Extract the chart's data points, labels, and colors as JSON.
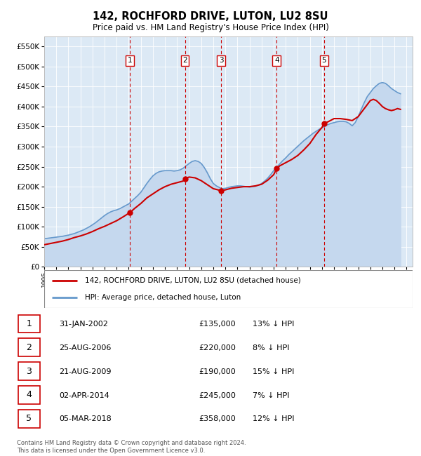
{
  "title": "142, ROCHFORD DRIVE, LUTON, LU2 8SU",
  "subtitle": "Price paid vs. HM Land Registry's House Price Index (HPI)",
  "ylim": [
    0,
    575000
  ],
  "yticks": [
    0,
    50000,
    100000,
    150000,
    200000,
    250000,
    300000,
    350000,
    400000,
    450000,
    500000,
    550000
  ],
  "fig_bg_color": "#ffffff",
  "plot_bg_color": "#dce9f5",
  "hpi_color": "#6699cc",
  "hpi_fill_color": "#c5d8ee",
  "price_color": "#cc0000",
  "vline_color": "#cc0000",
  "transactions": [
    {
      "num": 1,
      "date": "31-JAN-2002",
      "price": 135000,
      "pct": "13%",
      "x": 2002.08
    },
    {
      "num": 2,
      "date": "25-AUG-2006",
      "price": 220000,
      "pct": "8%",
      "x": 2006.65
    },
    {
      "num": 3,
      "date": "21-AUG-2009",
      "price": 190000,
      "pct": "15%",
      "x": 2009.65
    },
    {
      "num": 4,
      "date": "02-APR-2014",
      "price": 245000,
      "pct": "7%",
      "x": 2014.25
    },
    {
      "num": 5,
      "date": "05-MAR-2018",
      "price": 358000,
      "pct": "12%",
      "x": 2018.17
    }
  ],
  "hpi_line": {
    "x": [
      1995.0,
      1995.25,
      1995.5,
      1995.75,
      1996.0,
      1996.25,
      1996.5,
      1996.75,
      1997.0,
      1997.25,
      1997.5,
      1997.75,
      1998.0,
      1998.25,
      1998.5,
      1998.75,
      1999.0,
      1999.25,
      1999.5,
      1999.75,
      2000.0,
      2000.25,
      2000.5,
      2000.75,
      2001.0,
      2001.25,
      2001.5,
      2001.75,
      2002.0,
      2002.25,
      2002.5,
      2002.75,
      2003.0,
      2003.25,
      2003.5,
      2003.75,
      2004.0,
      2004.25,
      2004.5,
      2004.75,
      2005.0,
      2005.25,
      2005.5,
      2005.75,
      2006.0,
      2006.25,
      2006.5,
      2006.75,
      2007.0,
      2007.25,
      2007.5,
      2007.75,
      2008.0,
      2008.25,
      2008.5,
      2008.75,
      2009.0,
      2009.25,
      2009.5,
      2009.75,
      2010.0,
      2010.25,
      2010.5,
      2010.75,
      2011.0,
      2011.25,
      2011.5,
      2011.75,
      2012.0,
      2012.25,
      2012.5,
      2012.75,
      2013.0,
      2013.25,
      2013.5,
      2013.75,
      2014.0,
      2014.25,
      2014.5,
      2014.75,
      2015.0,
      2015.25,
      2015.5,
      2015.75,
      2016.0,
      2016.25,
      2016.5,
      2016.75,
      2017.0,
      2017.25,
      2017.5,
      2017.75,
      2018.0,
      2018.25,
      2018.5,
      2018.75,
      2019.0,
      2019.25,
      2019.5,
      2019.75,
      2020.0,
      2020.25,
      2020.5,
      2020.75,
      2021.0,
      2021.25,
      2021.5,
      2021.75,
      2022.0,
      2022.25,
      2022.5,
      2022.75,
      2023.0,
      2023.25,
      2023.5,
      2023.75,
      2024.0,
      2024.25,
      2024.5
    ],
    "y": [
      70000,
      71000,
      72000,
      73000,
      74000,
      75000,
      76000,
      77500,
      79000,
      81000,
      83000,
      86000,
      89000,
      92000,
      96000,
      100000,
      105000,
      110000,
      116000,
      122000,
      128000,
      133000,
      137000,
      140000,
      142000,
      145000,
      149000,
      153000,
      157000,
      164000,
      171000,
      178000,
      186000,
      197000,
      208000,
      218000,
      227000,
      233000,
      237000,
      239000,
      240000,
      240000,
      240000,
      239000,
      240000,
      242000,
      246000,
      252000,
      258000,
      263000,
      265000,
      263000,
      258000,
      248000,
      235000,
      220000,
      208000,
      202000,
      198000,
      195000,
      196000,
      198000,
      200000,
      201000,
      202000,
      202000,
      201000,
      200000,
      199000,
      200000,
      201000,
      204000,
      208000,
      214000,
      221000,
      230000,
      240000,
      248000,
      257000,
      265000,
      272000,
      280000,
      287000,
      294000,
      301000,
      308000,
      315000,
      321000,
      327000,
      333000,
      338000,
      343000,
      347000,
      351000,
      355000,
      358000,
      360000,
      362000,
      363000,
      363000,
      362000,
      358000,
      352000,
      360000,
      375000,
      393000,
      410000,
      425000,
      435000,
      445000,
      452000,
      458000,
      460000,
      458000,
      452000,
      445000,
      440000,
      435000,
      432000
    ]
  },
  "price_line": {
    "x": [
      1995.0,
      1995.5,
      1996.0,
      1996.5,
      1997.0,
      1997.5,
      1998.0,
      1998.5,
      1999.0,
      1999.5,
      2000.0,
      2000.5,
      2001.0,
      2001.5,
      2002.08,
      2002.5,
      2003.0,
      2003.5,
      2004.0,
      2004.5,
      2005.0,
      2005.5,
      2006.0,
      2006.5,
      2006.65,
      2007.0,
      2007.5,
      2008.0,
      2008.5,
      2009.0,
      2009.65,
      2010.0,
      2010.5,
      2011.0,
      2011.5,
      2012.0,
      2012.5,
      2013.0,
      2013.5,
      2014.0,
      2014.25,
      2014.5,
      2015.0,
      2015.5,
      2016.0,
      2016.5,
      2017.0,
      2017.5,
      2018.0,
      2018.17,
      2018.5,
      2019.0,
      2019.5,
      2020.0,
      2020.5,
      2021.0,
      2021.25,
      2021.5,
      2021.75,
      2022.0,
      2022.25,
      2022.5,
      2022.75,
      2023.0,
      2023.25,
      2023.5,
      2023.75,
      2024.0,
      2024.25,
      2024.5
    ],
    "y": [
      55000,
      58000,
      61000,
      64000,
      68000,
      73000,
      77000,
      82000,
      88000,
      95000,
      101000,
      108000,
      115000,
      124000,
      135000,
      146000,
      158000,
      172000,
      182000,
      192000,
      200000,
      206000,
      210000,
      214000,
      220000,
      224000,
      222000,
      215000,
      205000,
      195000,
      190000,
      192000,
      196000,
      198000,
      200000,
      200000,
      202000,
      206000,
      216000,
      230000,
      245000,
      252000,
      260000,
      268000,
      278000,
      292000,
      308000,
      330000,
      348000,
      358000,
      362000,
      370000,
      370000,
      368000,
      365000,
      375000,
      385000,
      395000,
      405000,
      415000,
      418000,
      415000,
      408000,
      400000,
      395000,
      392000,
      390000,
      392000,
      395000,
      393000
    ]
  },
  "legend": {
    "price_label": "142, ROCHFORD DRIVE, LUTON, LU2 8SU (detached house)",
    "hpi_label": "HPI: Average price, detached house, Luton"
  },
  "footer": "Contains HM Land Registry data © Crown copyright and database right 2024.\nThis data is licensed under the Open Government Licence v3.0.",
  "xmin": 1995,
  "xmax": 2025.5,
  "xticks": [
    1995,
    1996,
    1997,
    1998,
    1999,
    2000,
    2001,
    2002,
    2003,
    2004,
    2005,
    2006,
    2007,
    2008,
    2009,
    2010,
    2011,
    2012,
    2013,
    2014,
    2015,
    2016,
    2017,
    2018,
    2019,
    2020,
    2021,
    2022,
    2023,
    2024,
    2025
  ]
}
